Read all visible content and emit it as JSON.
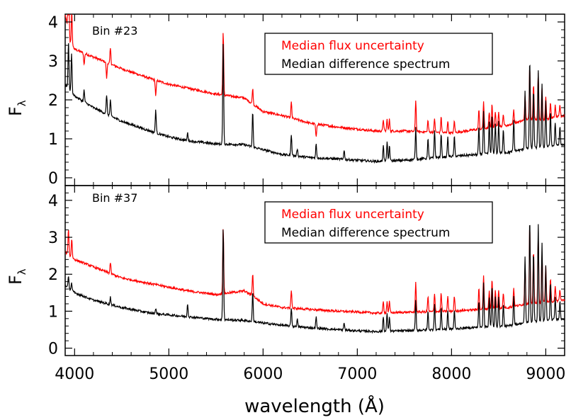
{
  "chart_data": {
    "type": "line",
    "xlabel": "wavelength (Å)",
    "x_ticks": [
      4000,
      5000,
      6000,
      7000,
      8000,
      9000
    ],
    "xlim": [
      3900,
      9200
    ],
    "colors": {
      "uncertainty": "#ff0000",
      "difference": "#000000",
      "axes": "#000000"
    },
    "panels": [
      {
        "id": "bin23",
        "label": "Bin #23",
        "ylabel": "F",
        "ylabel_sub": "λ",
        "ylim": [
          -0.2,
          4.2
        ],
        "y_ticks": [
          0,
          1,
          2,
          3,
          4
        ],
        "legend_position": "top-right",
        "series": [
          {
            "name": "Median flux uncertainty",
            "color": "#ff0000",
            "continuum": [
              [
                3900,
                4.2
              ],
              [
                3950,
                3.5
              ],
              [
                4000,
                3.3
              ],
              [
                4200,
                3.1
              ],
              [
                4500,
                2.8
              ],
              [
                4800,
                2.55
              ],
              [
                5000,
                2.4
              ],
              [
                5200,
                2.3
              ],
              [
                5500,
                2.15
              ],
              [
                5800,
                2.05
              ],
              [
                6000,
                1.7
              ],
              [
                6200,
                1.6
              ],
              [
                6500,
                1.4
              ],
              [
                6800,
                1.3
              ],
              [
                7000,
                1.25
              ],
              [
                7200,
                1.2
              ],
              [
                7500,
                1.2
              ],
              [
                8000,
                1.15
              ],
              [
                8300,
                1.25
              ],
              [
                8600,
                1.35
              ],
              [
                8800,
                1.5
              ],
              [
                9000,
                1.5
              ],
              [
                9200,
                1.6
              ]
            ],
            "lines": [
              [
                3935,
                3.6
              ],
              [
                3970,
                0.8
              ],
              [
                4101,
                -0.3
              ],
              [
                4340,
                -0.4
              ],
              [
                4380,
                0.4
              ],
              [
                4861,
                -0.4
              ],
              [
                5577,
                1.6
              ],
              [
                5890,
                0.4
              ],
              [
                6300,
                0.4
              ],
              [
                6563,
                -0.35
              ],
              [
                7276,
                0.3
              ],
              [
                7316,
                0.3
              ],
              [
                7341,
                0.3
              ],
              [
                7620,
                0.8
              ],
              [
                7750,
                0.3
              ],
              [
                7820,
                0.35
              ],
              [
                7890,
                0.4
              ],
              [
                7960,
                0.3
              ],
              [
                8030,
                0.3
              ],
              [
                8290,
                0.5
              ],
              [
                8340,
                0.7
              ],
              [
                8400,
                0.4
              ],
              [
                8430,
                0.6
              ],
              [
                8465,
                0.4
              ],
              [
                8500,
                0.4
              ],
              [
                8550,
                0.3
              ],
              [
                8660,
                0.35
              ],
              [
                8780,
                0.6
              ],
              [
                8830,
                1.35
              ],
              [
                8870,
                0.9
              ],
              [
                8920,
                1.2
              ],
              [
                8960,
                0.8
              ],
              [
                9000,
                0.6
              ],
              [
                9050,
                0.4
              ],
              [
                9100,
                0.3
              ],
              [
                9150,
                0.3
              ]
            ]
          },
          {
            "name": "Median difference spectrum",
            "color": "#000000",
            "continuum": [
              [
                3900,
                2.4
              ],
              [
                4000,
                2.1
              ],
              [
                4200,
                1.8
              ],
              [
                4500,
                1.45
              ],
              [
                4800,
                1.2
              ],
              [
                5000,
                1.05
              ],
              [
                5200,
                0.95
              ],
              [
                5500,
                0.87
              ],
              [
                5800,
                0.85
              ],
              [
                6000,
                0.72
              ],
              [
                6200,
                0.6
              ],
              [
                6500,
                0.52
              ],
              [
                6800,
                0.48
              ],
              [
                7000,
                0.45
              ],
              [
                7200,
                0.42
              ],
              [
                7500,
                0.45
              ],
              [
                8000,
                0.55
              ],
              [
                8300,
                0.6
              ],
              [
                8600,
                0.65
              ],
              [
                8800,
                0.75
              ],
              [
                9000,
                0.8
              ],
              [
                9200,
                0.85
              ]
            ],
            "lines": [
              [
                3935,
                1.2
              ],
              [
                3968,
                1.0
              ],
              [
                4101,
                0.3
              ],
              [
                4340,
                0.5
              ],
              [
                4380,
                0.4
              ],
              [
                4861,
                0.6
              ],
              [
                5199,
                0.2
              ],
              [
                5577,
                2.6
              ],
              [
                5890,
                0.9
              ],
              [
                6300,
                0.55
              ],
              [
                6363,
                0.2
              ],
              [
                6563,
                0.35
              ],
              [
                6860,
                0.25
              ],
              [
                7276,
                0.4
              ],
              [
                7316,
                0.5
              ],
              [
                7341,
                0.4
              ],
              [
                7620,
                0.8
              ],
              [
                7750,
                0.5
              ],
              [
                7820,
                0.7
              ],
              [
                7890,
                0.6
              ],
              [
                7960,
                0.5
              ],
              [
                8030,
                0.5
              ],
              [
                8290,
                0.7
              ],
              [
                8340,
                1.1
              ],
              [
                8400,
                0.8
              ],
              [
                8430,
                1.0
              ],
              [
                8465,
                0.8
              ],
              [
                8500,
                0.8
              ],
              [
                8550,
                0.6
              ],
              [
                8660,
                0.8
              ],
              [
                8780,
                1.5
              ],
              [
                8830,
                2.3
              ],
              [
                8870,
                1.5
              ],
              [
                8920,
                2.0
              ],
              [
                8960,
                1.6
              ],
              [
                9000,
                1.2
              ],
              [
                9050,
                0.9
              ],
              [
                9100,
                0.6
              ],
              [
                9150,
                0.5
              ]
            ]
          }
        ]
      },
      {
        "id": "bin37",
        "label": "Bin #37",
        "ylabel": "F",
        "ylabel_sub": "λ",
        "ylim": [
          -0.2,
          4.4
        ],
        "y_ticks": [
          0,
          1,
          2,
          3,
          4
        ],
        "legend_position": "top-right",
        "series": [
          {
            "name": "Median flux uncertainty",
            "color": "#ff0000",
            "continuum": [
              [
                3900,
                2.6
              ],
              [
                4000,
                2.4
              ],
              [
                4200,
                2.2
              ],
              [
                4500,
                1.9
              ],
              [
                4800,
                1.75
              ],
              [
                5000,
                1.65
              ],
              [
                5200,
                1.55
              ],
              [
                5500,
                1.45
              ],
              [
                5800,
                1.55
              ],
              [
                5900,
                1.4
              ],
              [
                6000,
                1.2
              ],
              [
                6200,
                1.1
              ],
              [
                6500,
                1.05
              ],
              [
                6800,
                1.0
              ],
              [
                7000,
                0.98
              ],
              [
                7200,
                0.95
              ],
              [
                7500,
                0.97
              ],
              [
                8000,
                1.0
              ],
              [
                8300,
                1.05
              ],
              [
                8600,
                1.1
              ],
              [
                8800,
                1.2
              ],
              [
                9000,
                1.25
              ],
              [
                9200,
                1.3
              ]
            ],
            "lines": [
              [
                3935,
                0.7
              ],
              [
                3970,
                0.5
              ],
              [
                4380,
                0.3
              ],
              [
                5577,
                1.8
              ],
              [
                5890,
                0.6
              ],
              [
                6300,
                0.5
              ],
              [
                7276,
                0.3
              ],
              [
                7316,
                0.3
              ],
              [
                7341,
                0.3
              ],
              [
                7620,
                0.8
              ],
              [
                7750,
                0.4
              ],
              [
                7820,
                0.5
              ],
              [
                7890,
                0.5
              ],
              [
                7960,
                0.4
              ],
              [
                8030,
                0.4
              ],
              [
                8290,
                0.6
              ],
              [
                8340,
                0.9
              ],
              [
                8400,
                0.5
              ],
              [
                8430,
                0.8
              ],
              [
                8465,
                0.5
              ],
              [
                8500,
                0.5
              ],
              [
                8550,
                0.4
              ],
              [
                8660,
                0.5
              ],
              [
                8780,
                1.0
              ],
              [
                8830,
                2.1
              ],
              [
                8870,
                1.4
              ],
              [
                8920,
                1.8
              ],
              [
                8960,
                1.3
              ],
              [
                9000,
                1.0
              ],
              [
                9050,
                0.6
              ],
              [
                9100,
                0.4
              ],
              [
                9150,
                0.3
              ]
            ]
          },
          {
            "name": "Median difference spectrum",
            "color": "#000000",
            "continuum": [
              [
                3900,
                1.7
              ],
              [
                4000,
                1.5
              ],
              [
                4200,
                1.3
              ],
              [
                4500,
                1.1
              ],
              [
                4800,
                0.95
              ],
              [
                5000,
                0.9
              ],
              [
                5200,
                0.85
              ],
              [
                5500,
                0.78
              ],
              [
                5800,
                0.75
              ],
              [
                6000,
                0.68
              ],
              [
                6200,
                0.62
              ],
              [
                6500,
                0.55
              ],
              [
                6800,
                0.5
              ],
              [
                7000,
                0.47
              ],
              [
                7200,
                0.45
              ],
              [
                7500,
                0.47
              ],
              [
                8000,
                0.52
              ],
              [
                8300,
                0.57
              ],
              [
                8600,
                0.6
              ],
              [
                8800,
                0.7
              ],
              [
                9000,
                0.75
              ],
              [
                9200,
                0.8
              ]
            ],
            "lines": [
              [
                3935,
                0.3
              ],
              [
                3968,
                0.2
              ],
              [
                4380,
                0.2
              ],
              [
                4861,
                0.15
              ],
              [
                5199,
                0.35
              ],
              [
                5577,
                2.5
              ],
              [
                5890,
                0.8
              ],
              [
                6300,
                0.5
              ],
              [
                6363,
                0.2
              ],
              [
                6563,
                0.3
              ],
              [
                6860,
                0.2
              ],
              [
                7276,
                0.4
              ],
              [
                7316,
                0.5
              ],
              [
                7341,
                0.4
              ],
              [
                7620,
                0.8
              ],
              [
                7750,
                0.5
              ],
              [
                7820,
                0.7
              ],
              [
                7890,
                0.6
              ],
              [
                7960,
                0.5
              ],
              [
                8030,
                0.5
              ],
              [
                8290,
                0.7
              ],
              [
                8340,
                1.2
              ],
              [
                8400,
                0.8
              ],
              [
                8430,
                1.1
              ],
              [
                8465,
                0.8
              ],
              [
                8500,
                0.8
              ],
              [
                8550,
                0.6
              ],
              [
                8660,
                0.8
              ],
              [
                8780,
                1.8
              ],
              [
                8830,
                2.8
              ],
              [
                8870,
                1.9
              ],
              [
                8920,
                2.6
              ],
              [
                8960,
                2.1
              ],
              [
                9000,
                1.5
              ],
              [
                9050,
                1.0
              ],
              [
                9100,
                0.6
              ],
              [
                9150,
                0.5
              ]
            ]
          }
        ]
      }
    ]
  }
}
